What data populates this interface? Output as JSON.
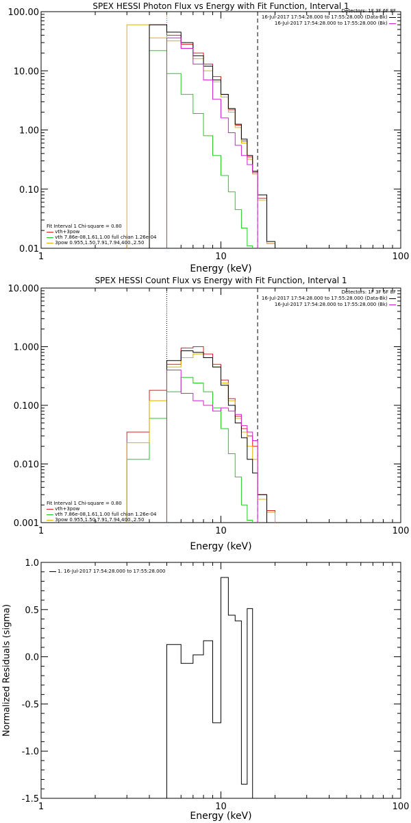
{
  "colors": {
    "black": "#000000",
    "red": "#e31a1c",
    "green": "#22cc22",
    "yellow": "#e0b000",
    "magenta": "#d020d0"
  },
  "chart_data": [
    {
      "type": "line",
      "title": "SPEX HESSI Photon Flux vs Energy with Fit Function, Interval 1",
      "xlabel": "Energy (keV)",
      "ylabel": "",
      "xscale": "log",
      "yscale": "log",
      "xlim": [
        1,
        100
      ],
      "ylim": [
        0.01,
        100
      ],
      "x_ticks": [
        "1",
        "10",
        "100"
      ],
      "y_ticks": [
        "0.01",
        "0.10",
        "1.00",
        "10.00",
        "100.00"
      ],
      "vlines": [
        {
          "x": 5,
          "style": "dotted",
          "color": "magenta"
        },
        {
          "x": 16,
          "style": "dashed",
          "color": "black"
        }
      ],
      "bin_edges": [
        3,
        4,
        5,
        6,
        7,
        8,
        9,
        10,
        11,
        12,
        13,
        14,
        15,
        16,
        18,
        20
      ],
      "series": [
        {
          "name": "vth+3pow",
          "color": "red",
          "values": [
            null,
            60,
            40,
            28,
            20,
            13,
            8,
            4,
            2.2,
            1.2,
            0.65,
            0.35,
            0.2,
            0.07,
            0.012,
            null
          ]
        },
        {
          "name": "vth 7.86e-08,1.61,1.00 full chian 1.26e-04",
          "color": "green",
          "values": [
            null,
            22,
            9,
            4,
            1.9,
            0.8,
            0.37,
            0.17,
            0.09,
            0.045,
            0.022,
            0.011,
            null,
            null,
            null,
            null
          ]
        },
        {
          "name": "3pow 0.955,1.50,7.91,7.94,400.,2.50",
          "color": "yellow",
          "values": [
            60,
            36,
            32,
            24,
            16,
            10,
            6.5,
            3.6,
            2.0,
            1.1,
            0.6,
            0.32,
            0.18,
            0.065,
            0.012,
            null
          ]
        },
        {
          "name": "",
          "color": "black",
          "values": [
            null,
            60,
            45,
            30,
            18,
            12,
            7,
            4,
            2.3,
            1.25,
            0.7,
            0.37,
            0.2,
            0.08,
            0.013,
            null
          ]
        },
        {
          "name": "",
          "color": "magenta",
          "values": [
            null,
            null,
            36,
            24,
            13,
            7,
            3.3,
            1.6,
            0.9,
            0.55,
            0.37,
            0.26,
            0.19,
            null,
            null,
            null
          ]
        }
      ],
      "legend_top": {
        "detectors": "Detectors: 1F 3F 6F 8F",
        "entries": [
          {
            "text": "16-Jul-2017 17:54:28.000 to 17:55:28.000 (Data-Bk)",
            "color": "black"
          },
          {
            "text": "16-Jul-2017 17:54:28.000 to 17:55:28.000 (Bk)",
            "color": "magenta"
          }
        ]
      },
      "legend_bottom": {
        "header": "Fit Interval 1    Chi-square = 0.80",
        "entries": [
          {
            "text": "vth+3pow",
            "color": "red"
          },
          {
            "text": "vth 7.86e-08,1.61,1.00  full chian 1.26e-04",
            "color": "green"
          },
          {
            "text": "3pow 0.955,1.50,7.91,7.94,400.,2.50",
            "color": "yellow"
          }
        ]
      }
    },
    {
      "type": "line",
      "title": "SPEX HESSI Count Flux vs Energy with Fit Function, Interval 1",
      "xlabel": "Energy (keV)",
      "ylabel": "",
      "xscale": "log",
      "yscale": "log",
      "xlim": [
        1,
        100
      ],
      "ylim": [
        0.001,
        10
      ],
      "x_ticks": [
        "1",
        "10",
        "100"
      ],
      "y_ticks": [
        "0.001",
        "0.010",
        "0.100",
        "1.000",
        "10.000"
      ],
      "vlines": [
        {
          "x": 5,
          "style": "dotted",
          "color": "black"
        },
        {
          "x": 16,
          "style": "dashed",
          "color": "black"
        }
      ],
      "bin_edges": [
        3,
        4,
        5,
        6,
        7,
        8,
        9,
        10,
        11,
        12,
        13,
        14,
        15,
        16,
        18,
        20
      ],
      "series": [
        {
          "name": "vth+3pow",
          "color": "red",
          "values": [
            0.035,
            0.18,
            0.5,
            0.95,
            1.0,
            0.75,
            0.5,
            0.27,
            0.13,
            0.065,
            0.04,
            0.03,
            0.02,
            0.003,
            0.0016,
            null
          ]
        },
        {
          "name": "vth 7.86e-08,1.61,1.00 full chian 1.26e-04",
          "color": "green",
          "values": [
            0.012,
            0.06,
            0.17,
            0.3,
            0.24,
            0.17,
            0.09,
            0.04,
            0.015,
            0.006,
            0.002,
            0.0011,
            null,
            null,
            null,
            null
          ]
        },
        {
          "name": "3pow 0.955,1.50,7.91,7.94,400.,2.50",
          "color": "yellow",
          "values": [
            0.023,
            0.12,
            0.45,
            0.65,
            0.75,
            0.65,
            0.45,
            0.24,
            0.12,
            0.06,
            0.035,
            0.02,
            0.012,
            0.0025,
            0.0015,
            null
          ]
        },
        {
          "name": "",
          "color": "black",
          "values": [
            null,
            null,
            0.58,
            0.85,
            0.8,
            0.65,
            0.45,
            0.22,
            0.1,
            0.05,
            0.028,
            0.012,
            0.007,
            0.003,
            null,
            null
          ]
        },
        {
          "name": "",
          "color": "magenta",
          "values": [
            null,
            null,
            0.4,
            0.16,
            0.12,
            0.1,
            0.08,
            0.09,
            0.08,
            0.07,
            0.045,
            0.035,
            0.025,
            null,
            null,
            null
          ]
        }
      ],
      "legend_top": {
        "detectors": "Detectors: 1F 3F 6F 8F",
        "entries": [
          {
            "text": "16-Jul-2017 17:54:28.000 to 17:55:28.000 (Data-Bk)",
            "color": "black"
          },
          {
            "text": "16-Jul-2017 17:54:28.000 to 17:55:28.000 (Bk)",
            "color": "magenta"
          }
        ]
      },
      "legend_bottom": {
        "header": "Fit Interval 1    Chi-square = 0.80",
        "entries": [
          {
            "text": "vth+3pow",
            "color": "red"
          },
          {
            "text": "vth 7.86e-08,1.61,1.00  full chian 1.26e-04",
            "color": "green"
          },
          {
            "text": "3pow 0.955,1.50,7.91,7.94,400.,2.50",
            "color": "yellow"
          }
        ]
      }
    },
    {
      "type": "line",
      "title": "",
      "xlabel": "Energy (keV)",
      "ylabel": "Normalized Residuals (sigma)",
      "xscale": "log",
      "yscale": "linear",
      "xlim": [
        1,
        100
      ],
      "ylim": [
        -1.5,
        1.0
      ],
      "x_ticks": [
        "1",
        "10",
        "100"
      ],
      "y_ticks": [
        "-1.5",
        "-1.0",
        "-0.5",
        "0.0",
        "0.5",
        "1.0"
      ],
      "bin_edges": [
        5,
        6,
        7,
        8,
        9,
        10,
        11,
        12,
        13,
        14,
        15,
        16
      ],
      "series": [
        {
          "name": "1. 16-Jul-2017 17:54:28.000 to 17:55:28.000",
          "color": "black",
          "values": [
            0.13,
            -0.07,
            0.02,
            0.17,
            -0.7,
            0.84,
            0.44,
            0.38,
            -1.35,
            0.51,
            null
          ]
        }
      ]
    }
  ]
}
